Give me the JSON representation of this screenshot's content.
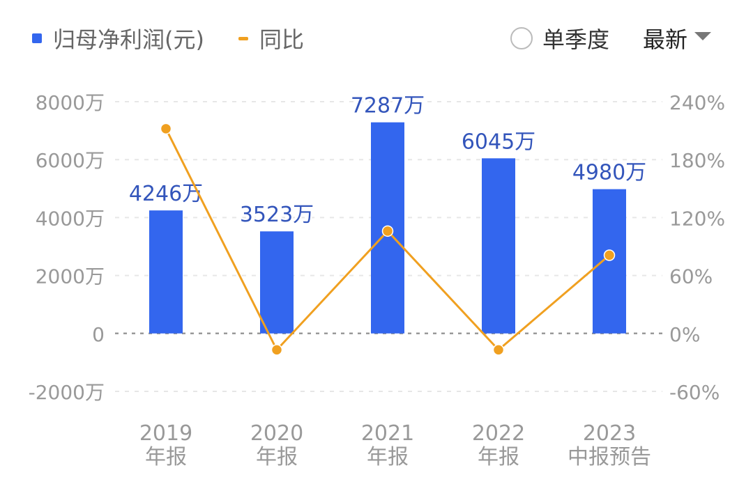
{
  "legend": {
    "items": [
      {
        "label": "归母净利润(元)",
        "color": "#3366ee",
        "marker": "square"
      },
      {
        "label": "同比",
        "color": "#f0a020",
        "marker": "dash"
      }
    ]
  },
  "controls": {
    "quarterly_toggle_label": "单季度",
    "quarterly_toggle_checked": false,
    "sort_dropdown_label": "最新"
  },
  "chart_data": {
    "type": "bar+line",
    "categories": [
      [
        "2019",
        "年报"
      ],
      [
        "2020",
        "年报"
      ],
      [
        "2021",
        "年报"
      ],
      [
        "2022",
        "年报"
      ],
      [
        "2023",
        "中报预告"
      ]
    ],
    "series": [
      {
        "name": "归母净利润(元)",
        "type": "bar",
        "axis": "left",
        "color": "#3366ee",
        "values": [
          4246,
          3523,
          7287,
          6045,
          4980
        ],
        "labels": [
          "4246万",
          "3523万",
          "7287万",
          "6045万",
          "4980万"
        ],
        "label_color": "#3355bb"
      },
      {
        "name": "同比",
        "type": "line",
        "axis": "right",
        "color": "#f0a020",
        "values": [
          212,
          -17,
          106,
          -17,
          81
        ]
      }
    ],
    "y_left": {
      "ylim": [
        -2000,
        8000
      ],
      "ticks": [
        -2000,
        0,
        2000,
        4000,
        6000,
        8000
      ],
      "tick_labels": [
        "-2000万",
        "0",
        "2000万",
        "4000万",
        "6000万",
        "8000万"
      ]
    },
    "y_right": {
      "ylim": [
        -60,
        240
      ],
      "ticks": [
        -60,
        0,
        60,
        120,
        180,
        240
      ],
      "tick_labels": [
        "-60%",
        "0%",
        "60%",
        "120%",
        "180%",
        "240%"
      ]
    },
    "grid": true
  }
}
